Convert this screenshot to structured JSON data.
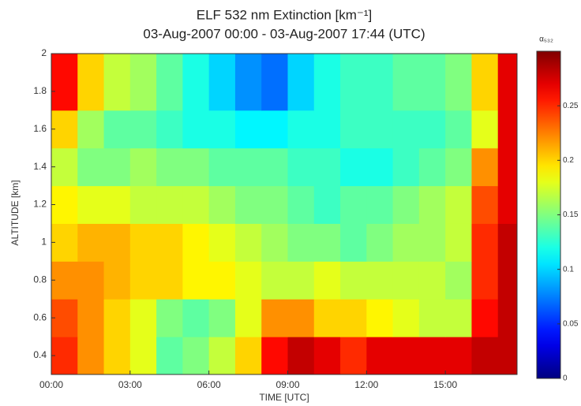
{
  "chart_data": {
    "type": "heatmap",
    "title": "ELF 532 nm Extinction [km⁻¹]",
    "subtitle": "03-Aug-2007 00:00 - 03-Aug-2007 17:44 (UTC)",
    "x_label": "TIME [UTC]",
    "y_label": "ALTITUDE [km]",
    "colorbar_label": "α₅₃₂",
    "colormap": "jet",
    "xlim": [
      0,
      17.73
    ],
    "xticks": [
      {
        "value": 0,
        "label": "00:00"
      },
      {
        "value": 3,
        "label": "03:00"
      },
      {
        "value": 6,
        "label": "06:00"
      },
      {
        "value": 9,
        "label": "09:00"
      },
      {
        "value": 12,
        "label": "12:00"
      },
      {
        "value": 15,
        "label": "15:00"
      }
    ],
    "ylim": [
      0.3,
      2
    ],
    "yticks": [
      0.4,
      0.6,
      0.8,
      1,
      1.2,
      1.4,
      1.6,
      1.8,
      2
    ],
    "clim": [
      0,
      0.3
    ],
    "cticks": [
      0,
      0.05,
      0.1,
      0.15,
      0.2,
      0.25
    ],
    "x_edges": [
      0,
      1,
      2,
      3,
      4,
      5,
      6,
      7,
      8,
      9,
      10,
      11,
      12,
      13,
      14,
      15,
      16,
      17,
      17.73
    ],
    "y_edges": [
      0.3,
      0.5,
      0.7,
      0.9,
      1.1,
      1.3,
      1.5,
      1.7,
      2
    ],
    "z": [
      [
        0.25,
        0.22,
        0.2,
        0.18,
        0.14,
        0.15,
        0.17,
        0.2,
        0.26,
        0.28,
        0.27,
        0.25,
        0.27,
        0.27,
        0.27,
        0.27,
        0.28,
        0.28
      ],
      [
        0.24,
        0.22,
        0.2,
        0.18,
        0.15,
        0.14,
        0.15,
        0.18,
        0.22,
        0.22,
        0.2,
        0.2,
        0.19,
        0.18,
        0.17,
        0.17,
        0.26,
        0.28
      ],
      [
        0.22,
        0.22,
        0.21,
        0.2,
        0.2,
        0.19,
        0.19,
        0.18,
        0.17,
        0.17,
        0.18,
        0.17,
        0.17,
        0.17,
        0.17,
        0.16,
        0.25,
        0.28
      ],
      [
        0.2,
        0.21,
        0.21,
        0.2,
        0.2,
        0.19,
        0.18,
        0.17,
        0.16,
        0.15,
        0.15,
        0.14,
        0.15,
        0.16,
        0.16,
        0.17,
        0.25,
        0.28
      ],
      [
        0.19,
        0.18,
        0.18,
        0.17,
        0.17,
        0.17,
        0.16,
        0.15,
        0.15,
        0.14,
        0.13,
        0.14,
        0.14,
        0.15,
        0.16,
        0.17,
        0.24,
        0.27
      ],
      [
        0.17,
        0.15,
        0.15,
        0.16,
        0.15,
        0.15,
        0.14,
        0.14,
        0.14,
        0.13,
        0.13,
        0.12,
        0.12,
        0.13,
        0.14,
        0.15,
        0.22,
        0.27
      ],
      [
        0.2,
        0.16,
        0.14,
        0.14,
        0.13,
        0.12,
        0.12,
        0.11,
        0.11,
        0.12,
        0.12,
        0.13,
        0.13,
        0.13,
        0.13,
        0.14,
        0.18,
        0.27
      ],
      [
        0.26,
        0.2,
        0.17,
        0.16,
        0.14,
        0.12,
        0.1,
        0.08,
        0.07,
        0.1,
        0.12,
        0.13,
        0.13,
        0.14,
        0.14,
        0.15,
        0.2,
        0.27
      ]
    ]
  }
}
